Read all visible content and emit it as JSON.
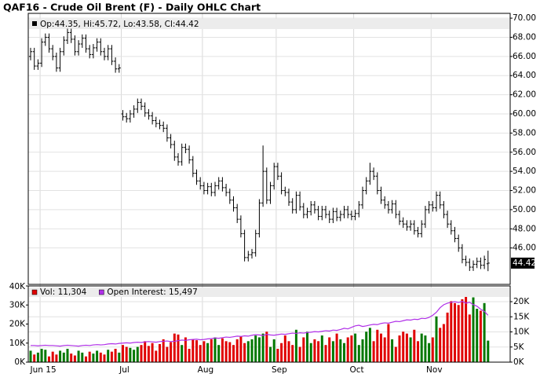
{
  "chart_data": [
    {
      "type": "ohlc",
      "title": "QAF16 - Crude Oil Brent (F) - Daily OHLC Chart",
      "legend_text": "Op:44.35, Hi:45.72, Lo:43.58, Cl:44.42",
      "color": "#000000",
      "grid": true,
      "ylim": [
        42.2,
        70.5
      ],
      "yticks": [
        {
          "value": 46,
          "label": "46.00"
        },
        {
          "value": 48,
          "label": "48.00"
        },
        {
          "value": 50,
          "label": "50.00"
        },
        {
          "value": 52,
          "label": "52.00"
        },
        {
          "value": 54,
          "label": "54.00"
        },
        {
          "value": 56,
          "label": "56.00"
        },
        {
          "value": 58,
          "label": "58.00"
        },
        {
          "value": 60,
          "label": "60.00"
        },
        {
          "value": 62,
          "label": "62.00"
        },
        {
          "value": 64,
          "label": "64.00"
        },
        {
          "value": 66,
          "label": "66.00"
        },
        {
          "value": 68,
          "label": "68.00"
        },
        {
          "value": 70,
          "label": "70.00"
        }
      ],
      "last_price": {
        "value": 44.42,
        "label": "44.42"
      },
      "open": [
        66.0,
        66.5,
        65.0,
        65.3,
        67.5,
        68.0,
        66.8,
        66.0,
        64.8,
        66.5,
        67.7,
        68.5,
        67.8,
        66.5,
        67.3,
        67.9,
        66.8,
        66.2,
        66.9,
        67.5,
        66.5,
        66.0,
        66.8,
        65.5,
        64.7,
        60.0,
        59.7,
        59.5,
        60.0,
        60.5,
        61.2,
        60.8,
        60.1,
        59.8,
        59.3,
        59.0,
        58.8,
        58.5,
        57.5,
        56.8,
        55.5,
        55.0,
        56.5,
        56.3,
        55.2,
        53.8,
        53.0,
        52.5,
        52.0,
        52.4,
        51.8,
        52.5,
        53.0,
        52.3,
        51.8,
        51.0,
        50.2,
        49.0,
        47.5,
        45.0,
        45.3,
        45.5,
        47.5,
        50.7,
        54.0,
        51.0,
        52.5,
        54.5,
        53.5,
        52.0,
        51.8,
        50.8,
        50.0,
        51.5,
        50.3,
        49.5,
        49.8,
        50.5,
        50.0,
        49.3,
        50.0,
        49.5,
        49.0,
        49.8,
        49.2,
        49.5,
        50.0,
        49.5,
        49.3,
        49.6,
        50.5,
        52.0,
        53.0,
        54.0,
        53.5,
        52.0,
        51.0,
        50.5,
        50.0,
        50.6,
        49.5,
        48.8,
        48.5,
        48.2,
        48.5,
        47.8,
        47.5,
        48.5,
        50.0,
        50.5,
        50.2,
        51.5,
        50.5,
        49.5,
        48.5,
        47.8,
        47.0,
        46.0,
        44.8,
        44.5,
        44.0,
        44.3,
        44.6,
        44.2,
        44.35
      ],
      "high": [
        66.9,
        66.9,
        65.7,
        67.9,
        68.4,
        68.4,
        67.2,
        66.4,
        66.9,
        68.1,
        68.9,
        68.9,
        68.2,
        67.7,
        68.3,
        68.3,
        67.2,
        67.3,
        67.9,
        67.9,
        66.9,
        67.2,
        67.2,
        65.9,
        65.2,
        60.4,
        60.1,
        60.4,
        60.9,
        61.6,
        61.6,
        61.2,
        60.5,
        60.2,
        59.7,
        59.4,
        59.2,
        58.9,
        57.9,
        57.2,
        55.9,
        56.9,
        56.9,
        56.7,
        55.6,
        54.2,
        53.4,
        52.9,
        52.8,
        52.8,
        52.9,
        53.4,
        53.4,
        52.7,
        52.2,
        51.4,
        50.6,
        49.4,
        47.9,
        45.7,
        45.9,
        47.9,
        51.1,
        56.7,
        54.4,
        52.9,
        54.9,
        54.9,
        53.9,
        52.4,
        52.2,
        51.2,
        51.9,
        51.9,
        50.7,
        50.2,
        50.9,
        50.9,
        50.4,
        50.4,
        50.4,
        49.9,
        50.2,
        50.2,
        49.9,
        50.4,
        50.4,
        49.9,
        50.0,
        50.9,
        52.4,
        53.4,
        54.9,
        54.4,
        53.9,
        52.4,
        51.4,
        50.9,
        51.0,
        51.0,
        49.9,
        49.2,
        48.9,
        48.9,
        48.9,
        48.2,
        48.9,
        50.4,
        50.9,
        50.9,
        51.9,
        51.9,
        50.9,
        49.9,
        48.9,
        48.2,
        47.4,
        46.4,
        45.2,
        44.9,
        44.7,
        45.0,
        45.0,
        45.2,
        45.72
      ],
      "low": [
        65.6,
        64.6,
        64.6,
        64.9,
        67.1,
        66.4,
        65.6,
        64.4,
        64.4,
        66.1,
        67.3,
        67.4,
        66.1,
        66.1,
        66.9,
        66.4,
        65.8,
        65.8,
        66.5,
        66.1,
        65.6,
        65.6,
        65.1,
        64.3,
        64.3,
        59.3,
        59.1,
        59.1,
        59.6,
        60.1,
        60.4,
        59.7,
        59.4,
        58.9,
        58.6,
        58.4,
        58.1,
        57.1,
        56.4,
        55.1,
        54.6,
        54.6,
        55.9,
        54.8,
        53.4,
        52.6,
        52.1,
        51.6,
        51.6,
        51.4,
        51.4,
        52.1,
        51.9,
        51.4,
        50.6,
        49.8,
        48.6,
        47.1,
        44.6,
        44.6,
        44.9,
        45.1,
        47.1,
        50.3,
        50.6,
        50.6,
        52.1,
        53.1,
        51.6,
        51.4,
        50.4,
        49.6,
        49.6,
        49.9,
        49.1,
        49.1,
        49.4,
        49.6,
        48.9,
        48.9,
        49.1,
        48.6,
        48.6,
        48.8,
        48.8,
        49.1,
        49.1,
        48.9,
        48.9,
        49.2,
        50.1,
        51.6,
        52.6,
        53.1,
        51.6,
        50.6,
        50.1,
        49.6,
        49.6,
        49.1,
        48.4,
        48.1,
        47.8,
        47.8,
        47.4,
        47.1,
        47.1,
        48.1,
        49.6,
        49.8,
        49.8,
        50.1,
        49.1,
        48.1,
        47.4,
        46.6,
        45.6,
        44.4,
        44.1,
        43.6,
        43.6,
        43.9,
        43.8,
        43.8,
        43.58
      ],
      "close": [
        66.5,
        65.0,
        65.3,
        67.5,
        68.0,
        66.8,
        66.0,
        64.8,
        66.5,
        67.7,
        68.5,
        67.8,
        66.5,
        67.3,
        67.9,
        66.8,
        66.2,
        66.9,
        67.5,
        66.5,
        66.0,
        66.8,
        65.5,
        64.7,
        64.8,
        59.7,
        59.5,
        60.0,
        60.5,
        61.2,
        60.8,
        60.1,
        59.8,
        59.3,
        59.0,
        58.8,
        58.5,
        57.5,
        56.8,
        55.5,
        55.0,
        56.5,
        56.3,
        55.2,
        53.8,
        53.0,
        52.5,
        52.0,
        52.4,
        51.8,
        52.5,
        53.0,
        52.3,
        51.8,
        51.0,
        50.2,
        49.0,
        47.5,
        45.0,
        45.3,
        45.5,
        47.5,
        50.7,
        54.0,
        51.0,
        52.5,
        54.5,
        53.5,
        52.0,
        51.8,
        50.8,
        50.0,
        51.5,
        50.3,
        49.5,
        49.8,
        50.5,
        50.0,
        49.3,
        50.0,
        49.5,
        49.0,
        49.8,
        49.2,
        49.5,
        50.0,
        49.5,
        49.3,
        49.6,
        50.5,
        52.0,
        53.0,
        54.0,
        53.5,
        52.0,
        51.0,
        50.5,
        50.0,
        50.6,
        49.5,
        48.8,
        48.5,
        48.2,
        48.5,
        47.8,
        47.5,
        48.5,
        50.0,
        50.5,
        50.2,
        51.5,
        50.5,
        49.5,
        48.5,
        47.8,
        47.0,
        46.0,
        44.8,
        44.5,
        44.0,
        44.3,
        44.6,
        44.2,
        44.8,
        44.42
      ]
    },
    {
      "type": "volume",
      "categories": [
        null,
        null,
        null,
        "Jun 15",
        null,
        null,
        null,
        null,
        null,
        null,
        null,
        null,
        null,
        null,
        null,
        null,
        null,
        null,
        null,
        null,
        null,
        null,
        null,
        null,
        null,
        "Jul",
        null,
        null,
        null,
        null,
        null,
        null,
        null,
        null,
        null,
        null,
        null,
        null,
        null,
        null,
        null,
        null,
        null,
        null,
        null,
        null,
        null,
        "Aug",
        null,
        null,
        null,
        null,
        null,
        null,
        null,
        null,
        null,
        null,
        null,
        null,
        null,
        null,
        null,
        null,
        null,
        null,
        null,
        "Sep",
        null,
        null,
        null,
        null,
        null,
        null,
        null,
        null,
        null,
        null,
        null,
        null,
        null,
        null,
        null,
        null,
        null,
        null,
        null,
        null,
        "Oct",
        null,
        null,
        null,
        null,
        null,
        null,
        null,
        null,
        null,
        null,
        null,
        null,
        null,
        null,
        null,
        null,
        null,
        null,
        null,
        null,
        "Nov",
        null,
        null,
        null,
        null,
        null,
        null,
        null,
        null,
        null,
        null,
        null,
        null,
        null,
        null,
        null
      ],
      "ylim": [
        0,
        40000
      ],
      "yticks": [
        {
          "value": 0,
          "label": "0K"
        },
        {
          "value": 10000,
          "label": "10K"
        },
        {
          "value": 20000,
          "label": "20K"
        },
        {
          "value": 30000,
          "label": "30K"
        },
        {
          "value": 40000,
          "label": "40K"
        }
      ],
      "y2lim": [
        0,
        25200
      ],
      "y2ticks": [
        {
          "value": 0,
          "label": "0K"
        },
        {
          "value": 5000,
          "label": "5K"
        },
        {
          "value": 10000,
          "label": "10K"
        },
        {
          "value": 15000,
          "label": "15K"
        },
        {
          "value": 20000,
          "label": "20K"
        }
      ],
      "series": [
        {
          "name": "Vol: 11,304",
          "color": "#e00000",
          "up_color": "#007800",
          "values": [
            6000,
            4000,
            5000,
            7000,
            6500,
            3000,
            5500,
            4000,
            6000,
            5000,
            7000,
            4500,
            3500,
            6000,
            5000,
            3000,
            5500,
            4500,
            6000,
            5000,
            4000,
            6500,
            5500,
            7000,
            5000,
            9000,
            8000,
            7500,
            6500,
            8000,
            9000,
            11000,
            8500,
            10000,
            6000,
            9500,
            12000,
            8000,
            10500,
            15000,
            14500,
            9000,
            13000,
            7000,
            12000,
            11500,
            9000,
            11000,
            10000,
            12000,
            13000,
            9000,
            12500,
            11000,
            10500,
            9000,
            12000,
            13500,
            10000,
            11000,
            12000,
            14000,
            13000,
            15000,
            16000,
            8000,
            12000,
            7000,
            10000,
            14000,
            11000,
            9000,
            17000,
            8000,
            13000,
            16000,
            10000,
            12000,
            11000,
            14000,
            9000,
            13000,
            11000,
            15000,
            12000,
            10000,
            13000,
            14000,
            15000,
            9000,
            12000,
            16000,
            18000,
            11000,
            17000,
            15000,
            13000,
            20000,
            12000,
            8000,
            14000,
            16000,
            15000,
            13000,
            17000,
            11000,
            15000,
            14000,
            10000,
            13000,
            24000,
            18000,
            20000,
            26000,
            32000,
            31000,
            30000,
            33000,
            35000,
            25000,
            34000,
            28000,
            27000,
            31000,
            11304
          ]
        },
        {
          "name": "Open Interest: 15,497",
          "color": "#b030e8",
          "axis": "y2",
          "values": [
            5500,
            5500,
            5400,
            5500,
            5600,
            5500,
            5500,
            5400,
            5300,
            5500,
            5600,
            5500,
            5400,
            5300,
            5500,
            5600,
            5500,
            5700,
            5800,
            5700,
            5800,
            6000,
            6100,
            6000,
            6200,
            6300,
            6400,
            6300,
            6500,
            6600,
            6500,
            6700,
            6800,
            6700,
            6600,
            6800,
            6900,
            7000,
            6800,
            6900,
            7100,
            7300,
            7200,
            7400,
            7500,
            7600,
            7400,
            7500,
            7700,
            7800,
            8000,
            7900,
            8100,
            8300,
            8200,
            8400,
            8600,
            8500,
            8700,
            8600,
            8900,
            9100,
            9000,
            8800,
            9200,
            9000,
            8900,
            9100,
            9300,
            9200,
            9400,
            9600,
            9500,
            9700,
            9600,
            9800,
            9900,
            10100,
            10000,
            10200,
            10400,
            10300,
            10600,
            10500,
            10800,
            11200,
            11000,
            11500,
            12000,
            12200,
            11800,
            12000,
            12300,
            12500,
            12400,
            12800,
            13000,
            12900,
            13200,
            13500,
            13400,
            13700,
            14000,
            13900,
            14200,
            14100,
            14500,
            14400,
            14800,
            15500,
            16500,
            18000,
            19000,
            19500,
            19800,
            20000,
            19700,
            20100,
            19500,
            19800,
            19000,
            18500,
            17500,
            16800,
            15497
          ]
        }
      ]
    }
  ]
}
